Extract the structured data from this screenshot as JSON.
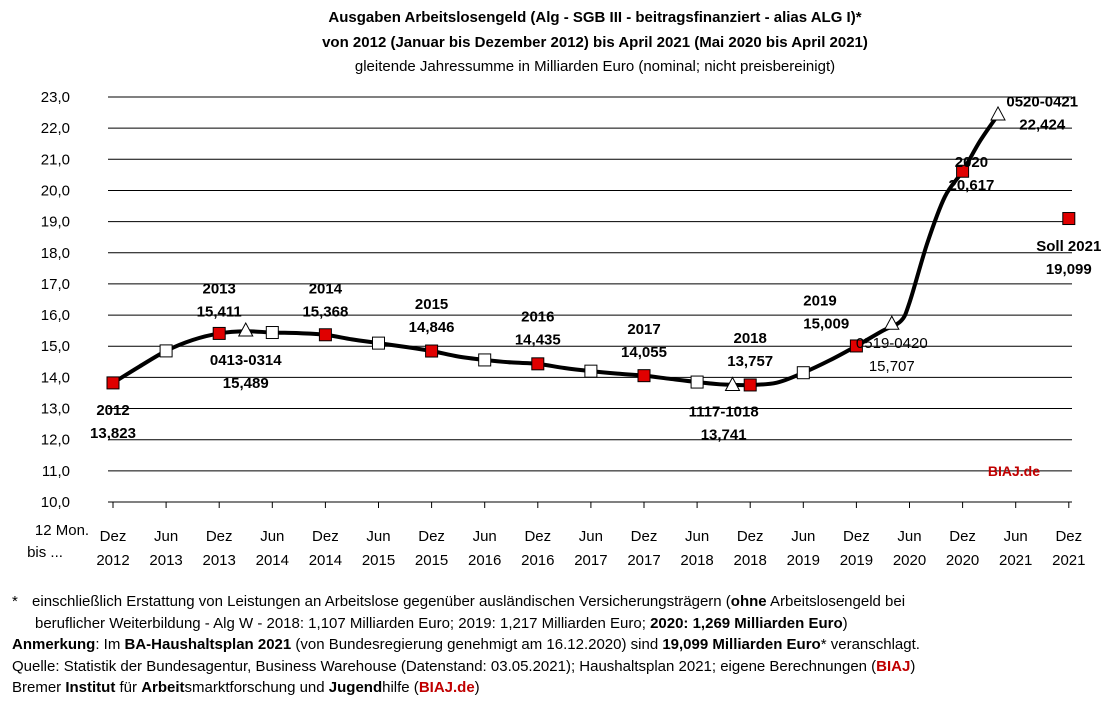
{
  "title_lines": [
    "Ausgaben Arbeitslosengeld (Alg - SGB III - beitragsfinanziert - alias ALG I)*",
    "von 2012 (Januar bis Dezember 2012) bis April 2021 (Mai 2020 bis April 2021)"
  ],
  "subtitle": "gleitende Jahressumme in Milliarden Euro (nominal; nicht preisbereinigt)",
  "x_axis_prefix": [
    "12 Mon.",
    "bis ..."
  ],
  "watermark": "BIAJ.de",
  "colors": {
    "red_marker": "#e00000",
    "watermark": "#c00000",
    "line": "#000000",
    "grid": "#000000"
  },
  "chart_data": {
    "type": "line",
    "ylim": [
      10.0,
      23.0
    ],
    "y_ticks": [
      "10,0",
      "11,0",
      "12,0",
      "13,0",
      "14,0",
      "15,0",
      "16,0",
      "17,0",
      "18,0",
      "19,0",
      "20,0",
      "21,0",
      "22,0",
      "23,0"
    ],
    "x_ticks": [
      [
        "Dez",
        "2012"
      ],
      [
        "Jun",
        "2013"
      ],
      [
        "Dez",
        "2013"
      ],
      [
        "Jun",
        "2014"
      ],
      [
        "Dez",
        "2014"
      ],
      [
        "Jun",
        "2015"
      ],
      [
        "Dez",
        "2015"
      ],
      [
        "Jun",
        "2016"
      ],
      [
        "Dez",
        "2016"
      ],
      [
        "Jun",
        "2017"
      ],
      [
        "Dez",
        "2017"
      ],
      [
        "Jun",
        "2018"
      ],
      [
        "Dez",
        "2018"
      ],
      [
        "Jun",
        "2019"
      ],
      [
        "Dez",
        "2019"
      ],
      [
        "Jun",
        "2020"
      ],
      [
        "Dez",
        "2020"
      ],
      [
        "Jun",
        "2021"
      ],
      [
        "Dez",
        "2021"
      ]
    ],
    "grid": true,
    "series": [
      {
        "type": "line",
        "x": [
          "2012-12",
          "2013-03",
          "2013-06",
          "2013-09",
          "2013-12",
          "2014-03",
          "2014-06",
          "2014-09",
          "2014-12",
          "2015-03",
          "2015-06",
          "2015-09",
          "2015-12",
          "2016-03",
          "2016-06",
          "2016-09",
          "2016-12",
          "2017-03",
          "2017-06",
          "2017-09",
          "2017-12",
          "2018-03",
          "2018-06",
          "2018-09",
          "2018-12",
          "2019-03",
          "2019-06",
          "2019-09",
          "2019-12",
          "2020-03",
          "2020-05",
          "2020-06",
          "2020-08",
          "2020-10",
          "2020-12",
          "2021-02",
          "2021-04"
        ],
        "y": [
          13.823,
          14.35,
          14.85,
          15.2,
          15.411,
          15.48,
          15.44,
          15.42,
          15.368,
          15.22,
          15.1,
          14.98,
          14.846,
          14.67,
          14.56,
          14.48,
          14.435,
          14.3,
          14.2,
          14.12,
          14.055,
          13.95,
          13.85,
          13.77,
          13.757,
          13.83,
          14.15,
          14.55,
          15.009,
          15.5,
          15.8,
          16.4,
          18.3,
          19.8,
          20.617,
          21.6,
          22.424
        ]
      }
    ],
    "markers_white_square": [
      {
        "x": "2013-06",
        "y": 14.85
      },
      {
        "x": "2014-06",
        "y": 15.44
      },
      {
        "x": "2015-06",
        "y": 15.1
      },
      {
        "x": "2016-06",
        "y": 14.56
      },
      {
        "x": "2017-06",
        "y": 14.2
      },
      {
        "x": "2018-06",
        "y": 13.85
      },
      {
        "x": "2019-06",
        "y": 14.15
      }
    ],
    "markers_red_square": [
      {
        "x": "2012-12",
        "y": 13.823
      },
      {
        "x": "2013-12",
        "y": 15.411
      },
      {
        "x": "2014-12",
        "y": 15.368
      },
      {
        "x": "2015-12",
        "y": 14.846
      },
      {
        "x": "2016-12",
        "y": 14.435
      },
      {
        "x": "2017-12",
        "y": 14.055
      },
      {
        "x": "2018-12",
        "y": 13.757
      },
      {
        "x": "2019-12",
        "y": 15.009
      },
      {
        "x": "2020-12",
        "y": 20.617
      },
      {
        "x": "2021-12",
        "y": 19.099
      }
    ],
    "markers_triangle": [
      {
        "x": "2014-03",
        "y": 15.489
      },
      {
        "x": "2018-10",
        "y": 13.741
      },
      {
        "x": "2020-04",
        "y": 15.707
      },
      {
        "x": "2021-04",
        "y": 22.424
      }
    ],
    "annotations": [
      {
        "lines": [
          "2012",
          "13,823"
        ],
        "bold": true,
        "anchor_x": "2012-12",
        "anchor_y": 12.8,
        "align": "middle"
      },
      {
        "lines": [
          "2013",
          "15,411"
        ],
        "bold": true,
        "anchor_x": "2013-12",
        "anchor_y": 16.7,
        "align": "middle"
      },
      {
        "lines": [
          "0413-0314",
          "15,489"
        ],
        "bold": true,
        "anchor_x": "2014-03",
        "anchor_y": 14.4,
        "align": "middle"
      },
      {
        "lines": [
          "2014",
          "15,368"
        ],
        "bold": true,
        "anchor_x": "2014-12",
        "anchor_y": 16.7,
        "align": "middle"
      },
      {
        "lines": [
          "2015",
          "14,846"
        ],
        "bold": true,
        "anchor_x": "2015-12",
        "anchor_y": 16.2,
        "align": "middle"
      },
      {
        "lines": [
          "2016",
          "14,435"
        ],
        "bold": true,
        "anchor_x": "2016-12",
        "anchor_y": 15.8,
        "align": "middle"
      },
      {
        "lines": [
          "2017",
          "14,055"
        ],
        "bold": true,
        "anchor_x": "2017-12",
        "anchor_y": 15.4,
        "align": "middle"
      },
      {
        "lines": [
          "2018",
          "13,757"
        ],
        "bold": true,
        "anchor_x": "2018-12",
        "anchor_y": 15.1,
        "align": "middle"
      },
      {
        "lines": [
          "1117-1018",
          "13,741"
        ],
        "bold": true,
        "anchor_x": "2018-09",
        "anchor_y": 12.75,
        "align": "middle"
      },
      {
        "lines": [
          "2019",
          "15,009"
        ],
        "bold": true,
        "anchor_x": "2019-06",
        "anchor_y": 16.3,
        "align": "start"
      },
      {
        "lines": [
          "0519-0420",
          "15,707"
        ],
        "bold": false,
        "anchor_x": "2020-04",
        "anchor_y": 14.95,
        "align": "middle"
      },
      {
        "lines": [
          "2020",
          "20,617"
        ],
        "bold": true,
        "anchor_x": "2021-01",
        "anchor_y": 20.75,
        "align": "middle"
      },
      {
        "lines": [
          "0520-0421",
          "22,424"
        ],
        "bold": true,
        "anchor_x": "2021-09",
        "anchor_y": 22.7,
        "align": "middle"
      },
      {
        "lines": [
          "Soll 2021",
          "19,099"
        ],
        "bold": true,
        "anchor_x": "2021-12",
        "anchor_y": 18.05,
        "align": "middle"
      }
    ]
  },
  "notes": {
    "star": "*",
    "l1a": "einschließlich Erstattung von Leistungen an Arbeitslose gegenüber ausländischen Versicherungsträgern (",
    "l1b": "ohne",
    "l1c": " Arbeitslosengeld bei",
    "l2a": "beruflicher Weiterbildung  - Alg W - 2018: 1,107 Milliarden Euro; 2019: 1,217 Milliarden Euro; ",
    "l2b": "2020: 1,269 Milliarden Euro",
    "l2c": ")",
    "l3a": "Anmerkung",
    "l3b": ": Im ",
    "l3c": "BA-Haushaltsplan 2021",
    "l3d": " (von Bundesregierung genehmigt am 16.12.2020) sind ",
    "l3e": "19,099 Milliarden Euro",
    "l3f": "* veranschlagt.",
    "l4a": "Quelle: Statistik der Bundesagentur, Business Warehouse (Datenstand: 03.05.2021); Haushaltsplan 2021; eigene Berechnungen (",
    "l4b": "BIAJ",
    "l4c": ")",
    "l5a": "Bremer ",
    "l5b": "Institut",
    "l5c": " für ",
    "l5d": "Arbeit",
    "l5e": "smarktforschung und ",
    "l5f": "Jugend",
    "l5g": "hilfe (",
    "l5h": "BIAJ.de",
    "l5i": ")"
  }
}
